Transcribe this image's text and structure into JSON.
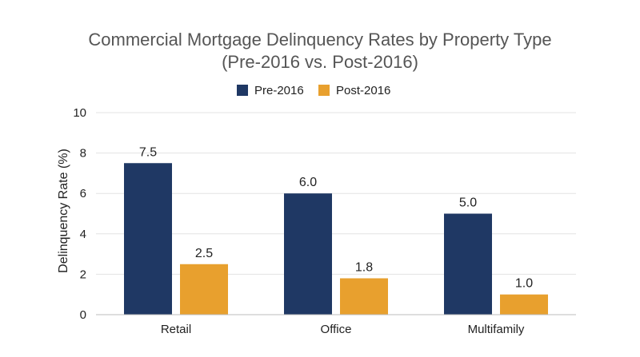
{
  "chart_data": {
    "type": "bar",
    "title": "Commercial Mortgage Delinquency Rates by Property Type",
    "subtitle": "(Pre-2016 vs. Post-2016)",
    "xlabel": "",
    "ylabel": "Delinquency Rate (%)",
    "categories": [
      "Retail",
      "Office",
      "Multifamily"
    ],
    "series": [
      {
        "name": "Pre-2016",
        "values": [
          7.5,
          6.0,
          5.0
        ],
        "labels": [
          "7.5",
          "6.0",
          "5.0"
        ],
        "color": "#1f3864"
      },
      {
        "name": "Post-2016",
        "values": [
          2.5,
          1.8,
          1.0
        ],
        "labels": [
          "2.5",
          "1.8",
          "1.0"
        ],
        "color": "#e8a02e"
      }
    ],
    "ylim": [
      0,
      10
    ],
    "yticks": [
      "0",
      "2",
      "4",
      "6",
      "8",
      "10"
    ],
    "ytick_values": [
      0,
      2,
      4,
      6,
      8,
      10
    ],
    "grid": true,
    "legend": "top-center"
  }
}
